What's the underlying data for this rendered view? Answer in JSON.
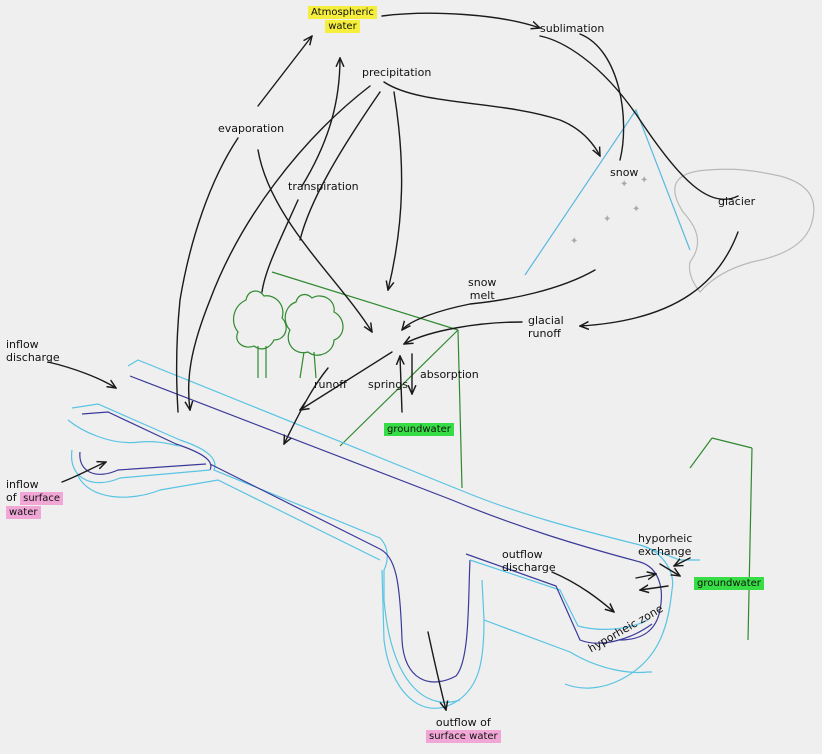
{
  "labels": {
    "atmospheric_water": [
      "Atmospheric",
      "water"
    ],
    "sublimation": "sublimation",
    "precipitation": "precipitation",
    "evaporation": "evaporation",
    "transpiration": "transpiration",
    "snow": "snow",
    "glacier": "glacier",
    "snow_melt": [
      "snow",
      "melt"
    ],
    "glacial_runoff": [
      "glacial",
      "runoff"
    ],
    "inflow_discharge": [
      "inflow",
      "discharge"
    ],
    "runoff": "runoff",
    "springs": "springs",
    "absorption": "absorption",
    "groundwater_upper": "groundwater",
    "inflow_surface": [
      "inflow",
      "of"
    ],
    "surface_water_a": [
      "surface",
      "water"
    ],
    "outflow_discharge": [
      "outflow",
      "discharge"
    ],
    "hyporheic_exchange": [
      "hyporheic",
      "exchange"
    ],
    "groundwater_lower": "groundwater",
    "hyporheic_zone": "hyporheic zone",
    "outflow_of": "outflow of",
    "surface_water_b": "surface water"
  },
  "colors": {
    "background": "#efefef",
    "ink": "#1a1a1a",
    "river_outer": "#59c4e3",
    "river_inner": "#3b3a9a",
    "land": "#2f8a2f",
    "glacier": "#b9b9b9",
    "highlight_yellow": "#f5ee3c",
    "highlight_green": "#37dd44",
    "highlight_pink": "#f0a7d6"
  }
}
